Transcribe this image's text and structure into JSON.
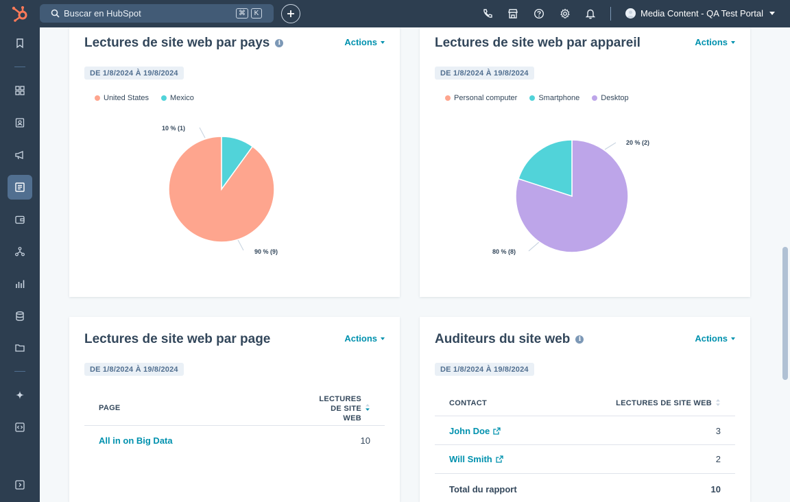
{
  "topbar": {
    "search_placeholder": "Buscar en HubSpot",
    "shortcut_key1": "⌘",
    "shortcut_key2": "K",
    "portal_name": "Media Content - QA Test Portal"
  },
  "colors": {
    "orange": "#ff7a59",
    "salmon": "#fea58e",
    "teal": "#51d3d9",
    "lavender": "#bda5e9",
    "link": "#0091ae"
  },
  "cards": {
    "country": {
      "title": "Lectures de site web par pays",
      "actions": "Actions",
      "date": "DE 1/8/2024 À 19/8/2024",
      "legend": [
        "United States",
        "Mexico"
      ],
      "label_small": "10 % (1)",
      "label_large": "90 % (9)"
    },
    "device": {
      "title": "Lectures de site web par appareil",
      "actions": "Actions",
      "date": "DE 1/8/2024 À 19/8/2024",
      "legend": [
        "Personal computer",
        "Smartphone",
        "Desktop"
      ],
      "label_small": "20 % (2)",
      "label_large": "80 % (8)"
    },
    "page": {
      "title": "Lectures de site web par page",
      "actions": "Actions",
      "date": "DE 1/8/2024 À 19/8/2024",
      "col_page": "PAGE",
      "col_views_l1": "LECTURES",
      "col_views_l2": "DE SITE",
      "col_views_l3": "WEB",
      "rows": [
        {
          "page": "All in on Big Data",
          "views": "10"
        }
      ]
    },
    "audience": {
      "title": "Auditeurs du site web",
      "actions": "Actions",
      "date": "DE 1/8/2024 À 19/8/2024",
      "col_contact": "CONTACT",
      "col_views": "LECTURES DE SITE WEB",
      "rows": [
        {
          "contact": "John Doe",
          "views": "3"
        },
        {
          "contact": "Will Smith",
          "views": "2"
        }
      ],
      "total_label": "Total du rapport",
      "total_value": "10"
    }
  },
  "chart_data": [
    {
      "type": "pie",
      "title": "Lectures de site web par pays",
      "categories": [
        "United States",
        "Mexico"
      ],
      "values": [
        9,
        1
      ],
      "percentages": [
        90,
        10
      ],
      "colors": [
        "#fea58e",
        "#51d3d9"
      ],
      "legend": "top-left"
    },
    {
      "type": "pie",
      "title": "Lectures de site web par appareil",
      "categories": [
        "Personal computer",
        "Smartphone",
        "Desktop"
      ],
      "values": [
        0,
        2,
        8
      ],
      "percentages": [
        0,
        20,
        80
      ],
      "colors": [
        "#fea58e",
        "#51d3d9",
        "#bda5e9"
      ],
      "legend": "top-left"
    }
  ]
}
